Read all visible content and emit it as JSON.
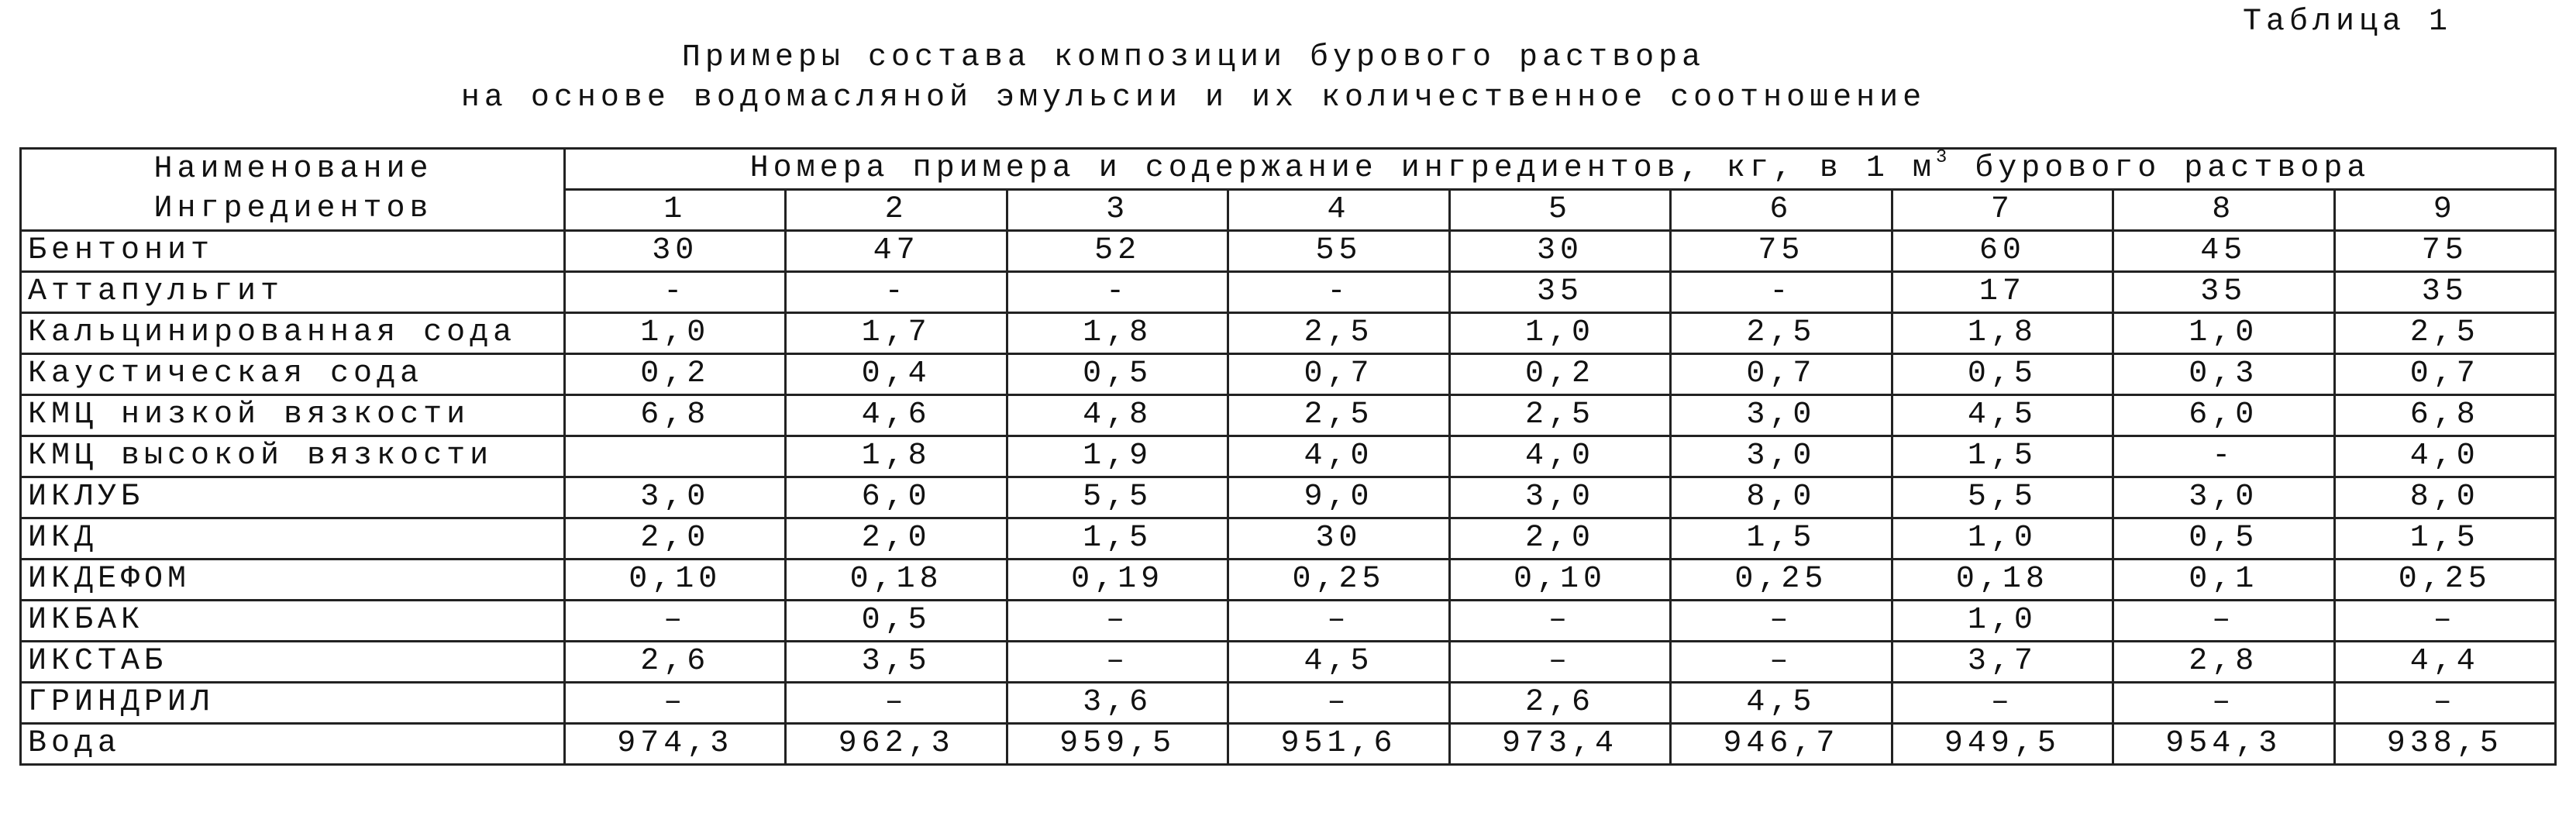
{
  "header": {
    "label": "Таблица 1",
    "title": [
      "Примеры состава композиции бурового раствора",
      "на основе водомасляной эмульсии и их количественное соотношение"
    ]
  },
  "table": {
    "first_header": [
      "Наименование",
      "Ингредиентов"
    ],
    "group_header": [
      "Номера примера и содержание ингредиентов, кг, в 1 м",
      "3",
      "бурового раствора"
    ],
    "columns": [
      "1",
      "2",
      "3",
      "4",
      "5",
      "6",
      "7",
      "8",
      "9"
    ],
    "rows": [
      [
        "Бентонит",
        "30",
        "47",
        "52",
        "55",
        "30",
        "75",
        "60",
        "45",
        "75"
      ],
      [
        "Аттапульгит",
        "-",
        "-",
        "-",
        "-",
        "35",
        "-",
        "17",
        "35",
        "35"
      ],
      [
        "Кальцинированная сода",
        "1,0",
        "1,7",
        "1,8",
        "2,5",
        "1,0",
        "2,5",
        "1,8",
        "1,0",
        "2,5"
      ],
      [
        "Каустическая сода",
        "0,2",
        "0,4",
        "0,5",
        "0,7",
        "0,2",
        "0,7",
        "0,5",
        "0,3",
        "0,7"
      ],
      [
        "КМЦ низкой вязкости",
        "6,8",
        "4,6",
        "4,8",
        "2,5",
        "2,5",
        "3,0",
        "4,5",
        "6,0",
        "6,8"
      ],
      [
        "КМЦ высокой вязкости",
        null,
        "1,8",
        "1,9",
        "4,0",
        "4,0",
        "3,0",
        "1,5",
        "-",
        "4,0"
      ],
      [
        "ИКЛУБ",
        "3,0",
        "6,0",
        "5,5",
        "9,0",
        "3,0",
        "8,0",
        "5,5",
        "3,0",
        "8,0"
      ],
      [
        "ИКД",
        "2,0",
        "2,0",
        "1,5",
        "30",
        "2,0",
        "1,5",
        "1,0",
        "0,5",
        "1,5"
      ],
      [
        "ИКДЕФОМ",
        "0,10",
        "0,18",
        "0,19",
        "0,25",
        "0,10",
        "0,25",
        "0,18",
        "0,1",
        "0,25"
      ],
      [
        "ИКБАК",
        "–",
        "0,5",
        "–",
        "–",
        "–",
        "–",
        "1,0",
        "–",
        "–"
      ],
      [
        "ИКСТАБ",
        "2,6",
        "3,5",
        "–",
        "4,5",
        "–",
        "–",
        "3,7",
        "2,8",
        "4,4"
      ],
      [
        "ГРИНДРИЛ",
        "–",
        "–",
        "3,6",
        "–",
        "2,6",
        "4,5",
        "–",
        "–",
        "–"
      ],
      [
        "Вода",
        "974,3",
        "962,3",
        "959,5",
        "951,6",
        "973,4",
        "946,7",
        "949,5",
        "954,3",
        "938,5"
      ]
    ]
  }
}
